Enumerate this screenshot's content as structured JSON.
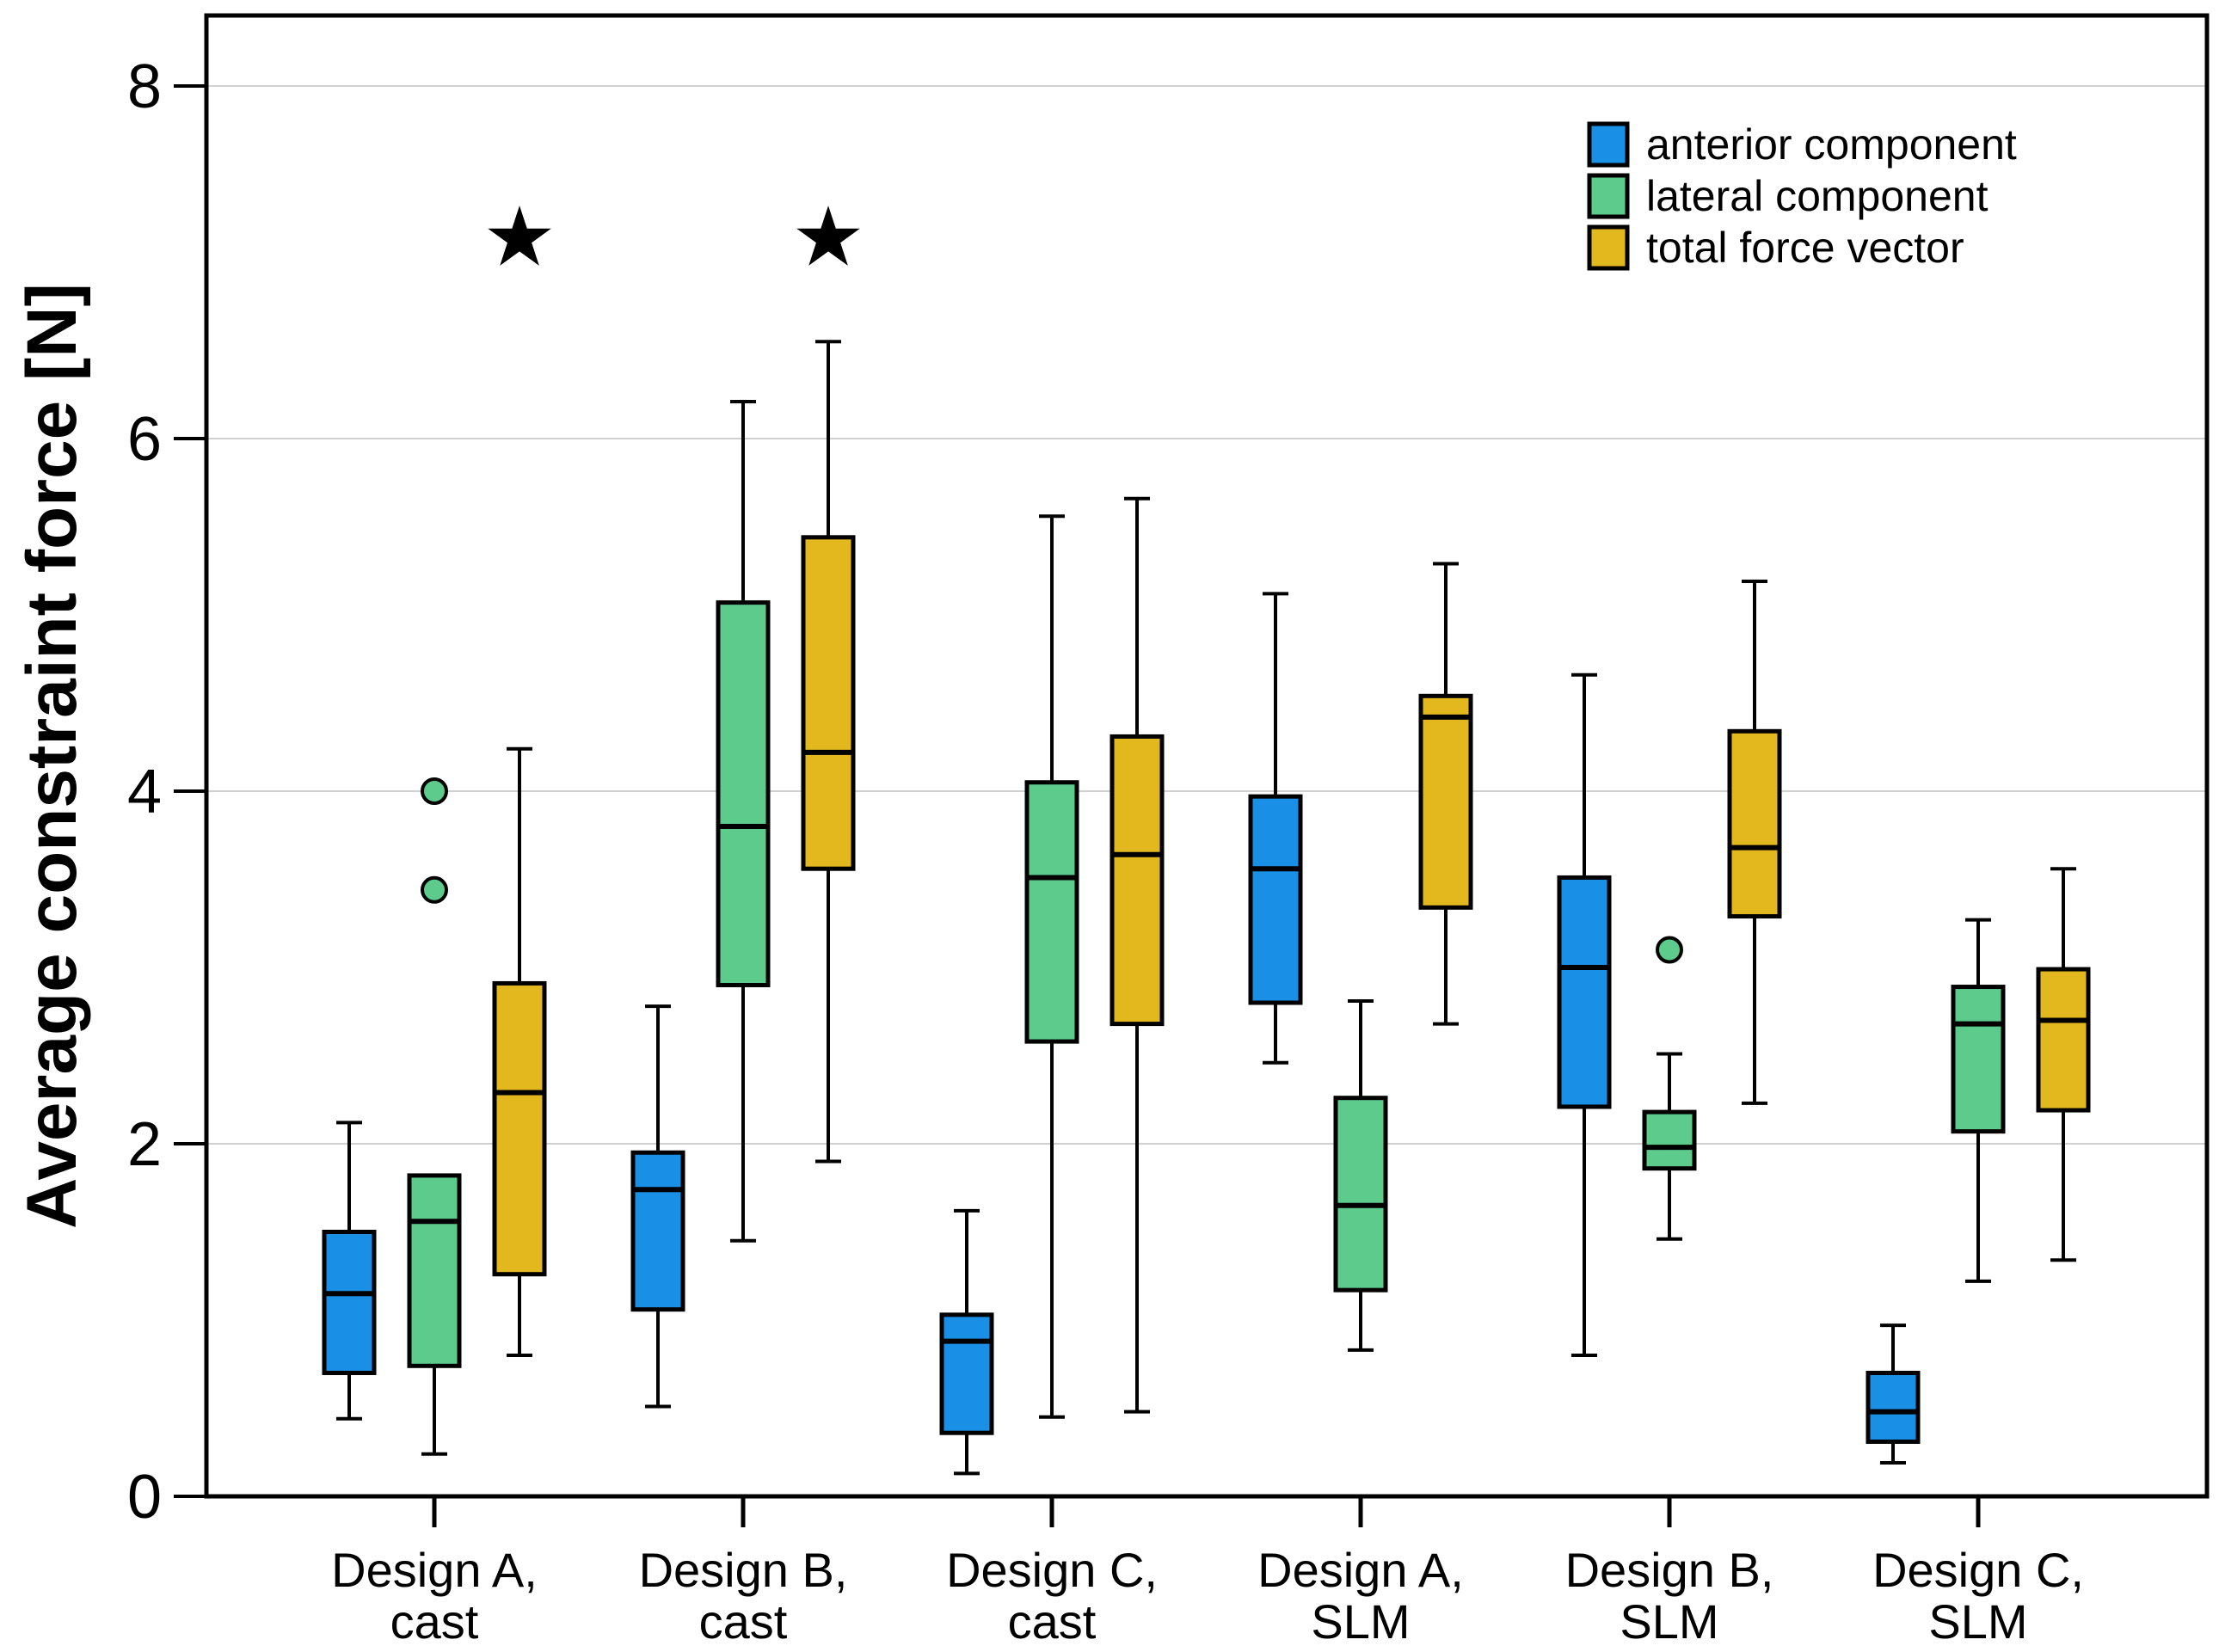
{
  "chart_data": {
    "type": "boxplot",
    "title": "",
    "xlabel": "",
    "ylabel": "Average constraint force [N]",
    "ylim": [
      0,
      8.4
    ],
    "yticks": [
      0,
      2,
      4,
      6,
      8
    ],
    "grid": "horizontal",
    "legend_position": "top-right",
    "categories": [
      [
        "Design A,",
        "cast"
      ],
      [
        "Design B,",
        "cast"
      ],
      [
        "Design C,",
        "cast"
      ],
      [
        "Design A,",
        "SLM"
      ],
      [
        "Design B,",
        "SLM"
      ],
      [
        "Design C,",
        "SLM"
      ]
    ],
    "series": [
      {
        "name": "anterior component",
        "color": "#1a8fe6",
        "boxes": [
          {
            "min": 0.44,
            "q1": 0.7,
            "median": 1.15,
            "q3": 1.5,
            "max": 2.12,
            "outliers": []
          },
          {
            "min": 0.51,
            "q1": 1.06,
            "median": 1.74,
            "q3": 1.95,
            "max": 2.78,
            "outliers": []
          },
          {
            "min": 0.13,
            "q1": 0.36,
            "median": 0.88,
            "q3": 1.03,
            "max": 1.62,
            "outliers": []
          },
          {
            "min": 2.46,
            "q1": 2.8,
            "median": 3.56,
            "q3": 3.97,
            "max": 5.12,
            "outliers": []
          },
          {
            "min": 0.8,
            "q1": 2.21,
            "median": 3.0,
            "q3": 3.51,
            "max": 4.66,
            "outliers": []
          },
          {
            "min": 0.19,
            "q1": 0.31,
            "median": 0.48,
            "q3": 0.7,
            "max": 0.97,
            "outliers": []
          }
        ]
      },
      {
        "name": "lateral component",
        "color": "#5ccb8c",
        "boxes": [
          {
            "min": 0.24,
            "q1": 0.74,
            "median": 1.56,
            "q3": 1.82,
            "max": 1.82,
            "outliers": [
              4.0,
              3.44
            ]
          },
          {
            "min": 1.45,
            "q1": 2.9,
            "median": 3.8,
            "q3": 5.07,
            "max": 6.21,
            "outliers": []
          },
          {
            "min": 0.45,
            "q1": 2.58,
            "median": 3.51,
            "q3": 4.05,
            "max": 5.56,
            "outliers": []
          },
          {
            "min": 0.83,
            "q1": 1.17,
            "median": 1.65,
            "q3": 2.26,
            "max": 2.81,
            "outliers": []
          },
          {
            "min": 1.46,
            "q1": 1.86,
            "median": 1.98,
            "q3": 2.18,
            "max": 2.51,
            "outliers": [
              3.1
            ]
          },
          {
            "min": 1.22,
            "q1": 2.07,
            "median": 2.68,
            "q3": 2.89,
            "max": 3.27,
            "outliers": []
          }
        ]
      },
      {
        "name": "total force vector",
        "color": "#e3b81f",
        "boxes": [
          {
            "min": 0.8,
            "q1": 1.26,
            "median": 2.29,
            "q3": 2.91,
            "max": 4.24,
            "outliers": []
          },
          {
            "min": 1.9,
            "q1": 3.56,
            "median": 4.22,
            "q3": 5.44,
            "max": 6.55,
            "outliers": []
          },
          {
            "min": 0.48,
            "q1": 2.68,
            "median": 3.64,
            "q3": 4.31,
            "max": 5.66,
            "outliers": []
          },
          {
            "min": 2.68,
            "q1": 3.34,
            "median": 4.42,
            "q3": 4.54,
            "max": 5.29,
            "outliers": []
          },
          {
            "min": 2.23,
            "q1": 3.29,
            "median": 3.68,
            "q3": 4.34,
            "max": 5.19,
            "outliers": []
          },
          {
            "min": 1.34,
            "q1": 2.19,
            "median": 2.7,
            "q3": 2.99,
            "max": 3.56,
            "outliers": []
          }
        ]
      }
    ],
    "annotations": [
      {
        "symbol": "★",
        "category_index": 0,
        "series_index": 2,
        "y": 7.15
      },
      {
        "symbol": "★",
        "category_index": 1,
        "series_index": 2,
        "y": 7.15
      }
    ]
  }
}
